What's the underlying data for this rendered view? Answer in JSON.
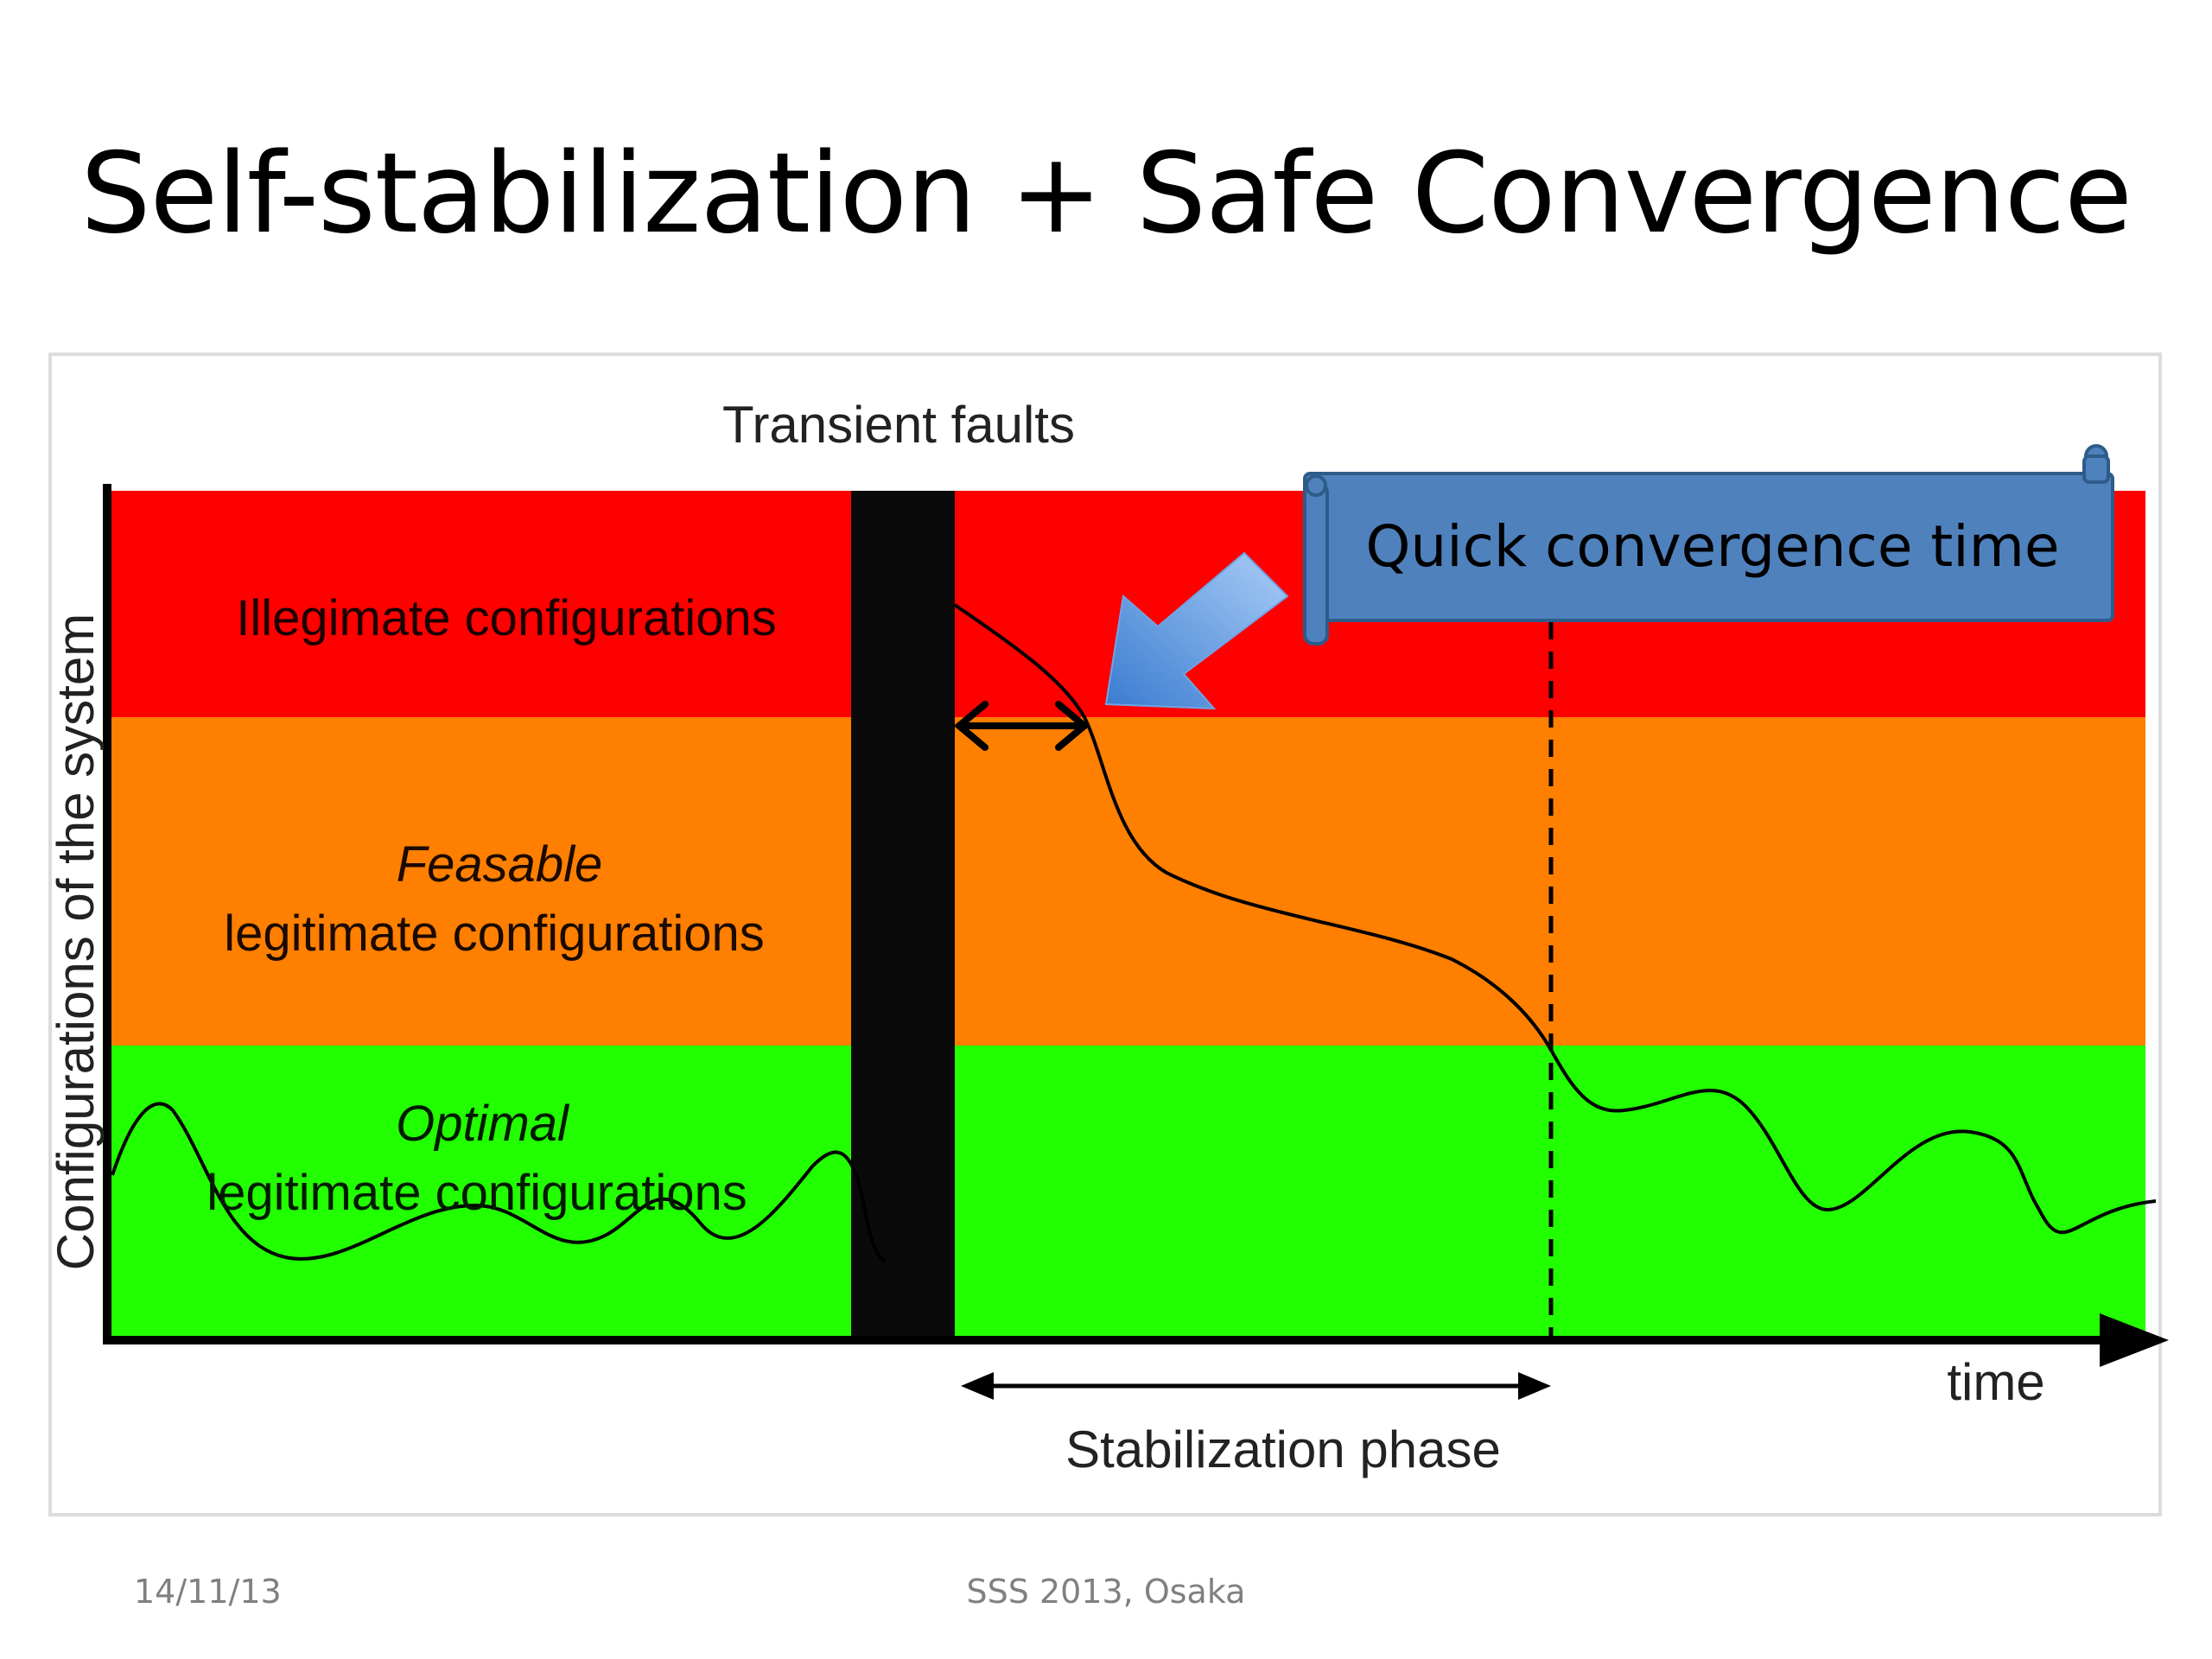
{
  "slide": {
    "title": "Self-stabilization + Safe Convergence",
    "footer_date": "14/11/13",
    "footer_conference": "SSS 2013, Osaka"
  },
  "diagram": {
    "y_axis_label": "Configurations of the system",
    "x_axis_label": "time",
    "fault_label": "Transient faults",
    "bands": {
      "illegitimate": "Illegimate configurations",
      "feasible_word": "Feasable",
      "feasible_rest": "legitimate configurations",
      "optimal_word": "Optimal",
      "optimal_rest": "legitimate configurations"
    },
    "callout": "Quick convergence time",
    "phase_label": "Stabilization phase",
    "colors": {
      "illegitimate": "#ff0000",
      "feasible": "#ff7f00",
      "optimal": "#22ff00",
      "fault_bar": "#0a0a0a",
      "callout_fill": "#4f81bd",
      "arrow_blue": "#4f8ed9"
    }
  }
}
